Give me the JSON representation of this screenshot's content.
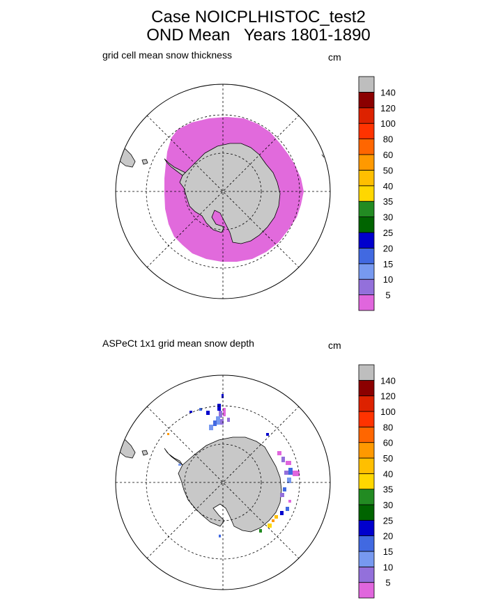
{
  "title_line1": "Case NOICPLHISTOC_test2",
  "title_line2": "OND Mean   Years 1801-1890",
  "colors": {
    "land": "#c8c8c8",
    "snow_top": "#e16adc"
  },
  "chart_data": [
    {
      "type": "heatmap",
      "projection": "south-polar-stereographic",
      "title": "grid cell mean snow thickness",
      "units": "cm",
      "colorbar": {
        "levels": [
          "5",
          "10",
          "15",
          "20",
          "25",
          "30",
          "35",
          "40",
          "50",
          "60",
          "80",
          "100",
          "120",
          "140"
        ],
        "colors": [
          "#e066dd",
          "#9370db",
          "#7799f0",
          "#4169e1",
          "#0000cd",
          "#006400",
          "#228b22",
          "#ffd700",
          "#ffbf00",
          "#ff9900",
          "#ff6600",
          "#ff3300",
          "#dd2200",
          "#8b0000",
          "#bebebe"
        ]
      },
      "description_class": "0-5 cm snow over nearly all sea ice"
    },
    {
      "type": "heatmap",
      "projection": "south-polar-stereographic",
      "title": "ASPeCt 1x1 grid mean snow depth",
      "units": "cm",
      "colorbar": {
        "levels": [
          "5",
          "10",
          "15",
          "20",
          "25",
          "30",
          "35",
          "40",
          "50",
          "60",
          "80",
          "100",
          "120",
          "140"
        ],
        "colors": [
          "#e066dd",
          "#9370db",
          "#7799f0",
          "#4169e1",
          "#0000cd",
          "#006400",
          "#228b22",
          "#ffd700",
          "#ffbf00",
          "#ff9900",
          "#ff6600",
          "#ff3300",
          "#dd2200",
          "#8b0000",
          "#bebebe"
        ]
      }
    }
  ]
}
